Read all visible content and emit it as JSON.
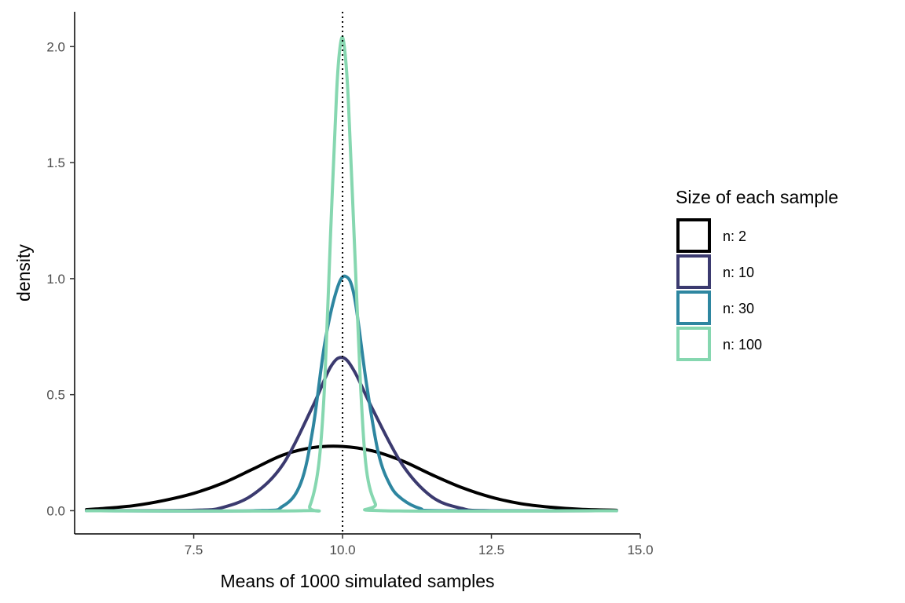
{
  "chart_data": {
    "type": "line",
    "title": "",
    "xlabel": "Means of 1000 simulated samples",
    "ylabel": "density",
    "xlim": [
      5.5,
      15.0
    ],
    "ylim": [
      -0.1,
      2.15
    ],
    "x_ticks": [
      7.5,
      10.0,
      12.5,
      15.0
    ],
    "x_tick_labels": [
      "7.5",
      "10.0",
      "12.5",
      "15.0"
    ],
    "y_ticks": [
      0.0,
      0.5,
      1.0,
      1.5,
      2.0
    ],
    "y_tick_labels": [
      "0.0",
      "0.5",
      "1.0",
      "1.5",
      "2.0"
    ],
    "grid": false,
    "legend": {
      "title": "Size of each sample",
      "position": "right"
    },
    "reference_line": {
      "x": 10.0,
      "style": "dotted",
      "color": "#000000"
    },
    "series": [
      {
        "name": "n: 2",
        "color": "#000000",
        "x": [
          5.7,
          6.0,
          6.5,
          7.0,
          7.5,
          8.0,
          8.5,
          9.0,
          9.5,
          10.0,
          10.5,
          11.0,
          11.5,
          12.0,
          12.5,
          13.0,
          13.5,
          14.0,
          14.6
        ],
        "y": [
          0.005,
          0.01,
          0.022,
          0.044,
          0.075,
          0.12,
          0.18,
          0.24,
          0.272,
          0.277,
          0.258,
          0.215,
          0.155,
          0.1,
          0.058,
          0.03,
          0.015,
          0.006,
          0.002
        ]
      },
      {
        "name": "n: 10",
        "color": "#3b3a6f",
        "x": [
          5.7,
          7.5,
          8.0,
          8.5,
          9.0,
          9.5,
          9.8,
          10.0,
          10.2,
          10.5,
          11.0,
          11.5,
          12.0,
          12.5,
          14.6
        ],
        "y": [
          0.0,
          0.002,
          0.015,
          0.07,
          0.2,
          0.45,
          0.62,
          0.66,
          0.6,
          0.44,
          0.2,
          0.06,
          0.01,
          0.0,
          0.0
        ]
      },
      {
        "name": "n: 30",
        "color": "#2e86a0",
        "x": [
          5.7,
          8.5,
          9.0,
          9.3,
          9.5,
          9.7,
          9.9,
          10.05,
          10.2,
          10.4,
          10.6,
          10.8,
          11.0,
          11.3,
          11.7,
          14.6
        ],
        "y": [
          0.0,
          0.0,
          0.02,
          0.12,
          0.35,
          0.72,
          0.95,
          1.01,
          0.92,
          0.55,
          0.25,
          0.11,
          0.05,
          0.01,
          0.0,
          0.0
        ]
      },
      {
        "name": "n: 100",
        "color": "#86d7b0",
        "x": [
          5.7,
          9.3,
          9.45,
          9.6,
          9.7,
          9.8,
          9.9,
          9.95,
          10.0,
          10.05,
          10.1,
          10.2,
          10.3,
          10.4,
          10.55,
          10.7,
          14.6
        ],
        "y": [
          0.0,
          0.0,
          0.02,
          0.2,
          0.55,
          1.2,
          1.8,
          1.98,
          2.04,
          1.95,
          1.75,
          1.15,
          0.55,
          0.18,
          0.03,
          0.0,
          0.0
        ]
      }
    ]
  }
}
